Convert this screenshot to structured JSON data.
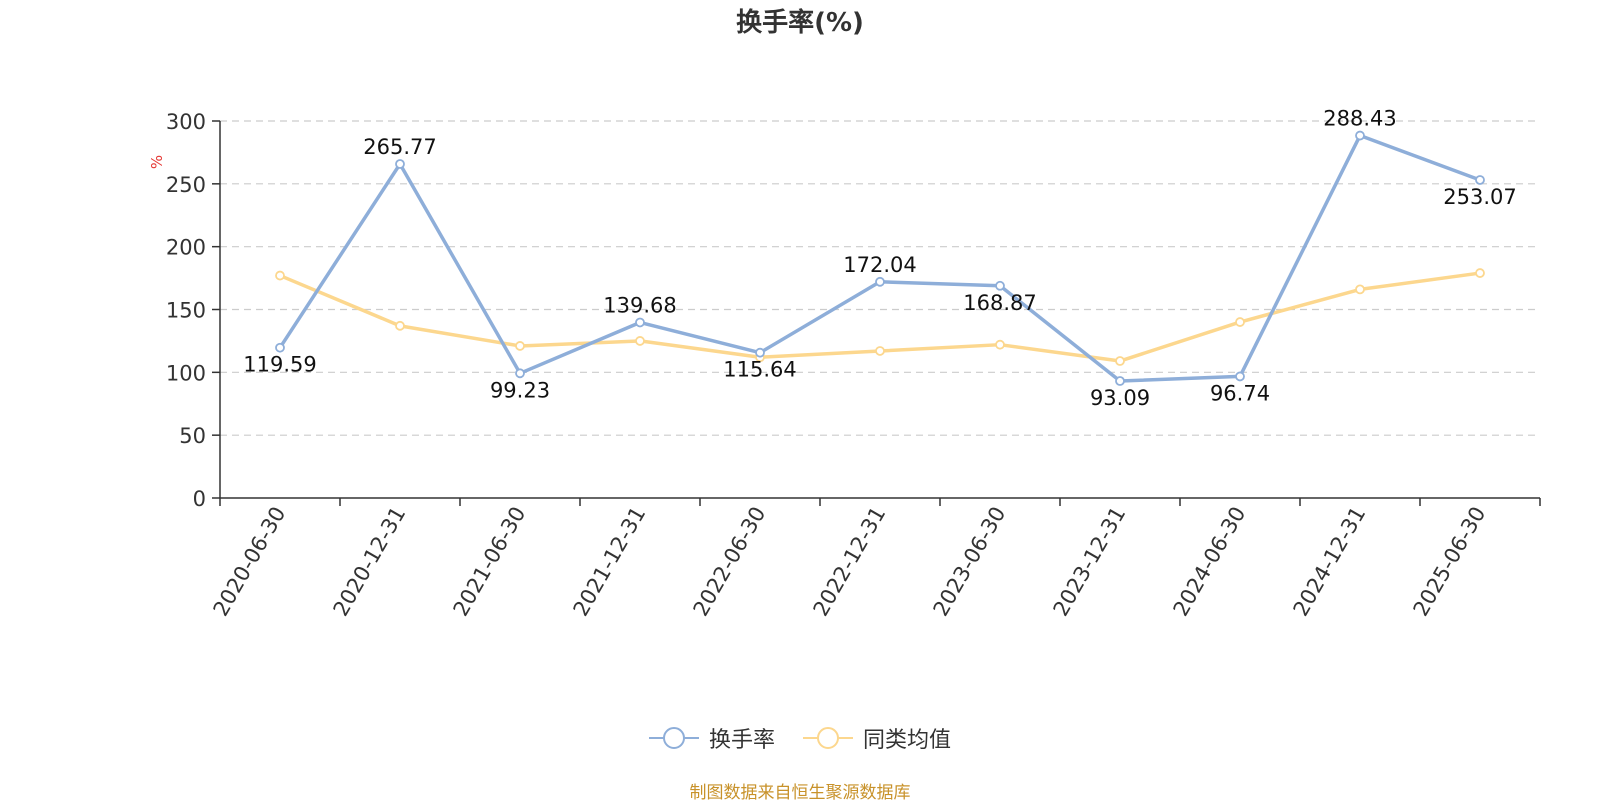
{
  "chart_data": {
    "type": "line",
    "title": "换手率(%)",
    "ylabel": "%",
    "xlabel": "",
    "ylim": [
      0,
      300
    ],
    "yticks": [
      0,
      50,
      100,
      150,
      200,
      250,
      300
    ],
    "grid": true,
    "legend_position": "bottom-center",
    "categories": [
      "2020-06-30",
      "2020-12-31",
      "2021-06-30",
      "2021-12-31",
      "2022-06-30",
      "2022-12-31",
      "2023-06-30",
      "2023-12-31",
      "2024-06-30",
      "2024-12-31",
      "2025-06-30"
    ],
    "series": [
      {
        "name": "换手率",
        "color": "#8eaed9",
        "values": [
          119.59,
          265.77,
          99.23,
          139.68,
          115.64,
          172.04,
          168.87,
          93.09,
          96.74,
          288.43,
          253.07
        ],
        "labels": [
          "119.59",
          "265.77",
          "99.23",
          "139.68",
          "115.64",
          "172.04",
          "168.87",
          "93.09",
          "96.74",
          "288.43",
          "253.07"
        ]
      },
      {
        "name": "同类均值",
        "color": "#fcd78e",
        "values": [
          177,
          137,
          121,
          125,
          112,
          117,
          122,
          109,
          140,
          166,
          179
        ]
      }
    ]
  },
  "source": "制图数据来自恒生聚源数据库",
  "colors": {
    "axis": "#333333",
    "grid": "#cccccc",
    "ylabel": "#e53935"
  }
}
